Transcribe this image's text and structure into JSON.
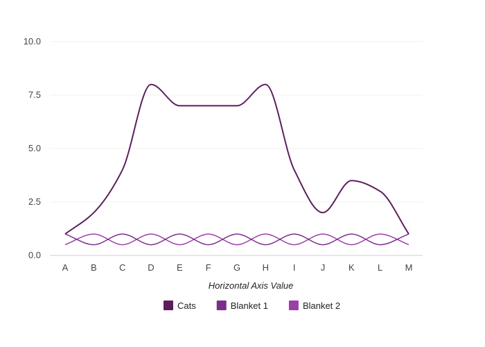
{
  "chart_data": {
    "type": "line",
    "categories": [
      "A",
      "B",
      "C",
      "D",
      "E",
      "F",
      "G",
      "H",
      "I",
      "J",
      "K",
      "L",
      "M"
    ],
    "xlabel": "Horizontal Axis Value",
    "ylabel": "",
    "ylim": [
      0,
      10
    ],
    "y_ticks": [
      "0.0",
      "2.5",
      "5.0",
      "7.5",
      "10.0"
    ],
    "grid": true,
    "legend_position": "bottom",
    "series": [
      {
        "name": "Cats",
        "color": "#5c1f5c",
        "values": [
          1,
          2,
          4,
          8,
          7,
          7,
          7,
          8,
          4,
          2,
          3.5,
          3,
          1
        ]
      },
      {
        "name": "Blanket 1",
        "color": "#7b2d8c",
        "values": [
          1,
          0.5,
          1,
          0.5,
          1,
          0.5,
          1,
          0.5,
          1,
          0.5,
          1,
          0.5,
          1
        ]
      },
      {
        "name": "Blanket 2",
        "color": "#9c3ea8",
        "values": [
          0.5,
          1,
          0.5,
          1,
          0.5,
          1,
          0.5,
          1,
          0.5,
          1,
          0.5,
          1,
          0.5
        ]
      }
    ]
  }
}
